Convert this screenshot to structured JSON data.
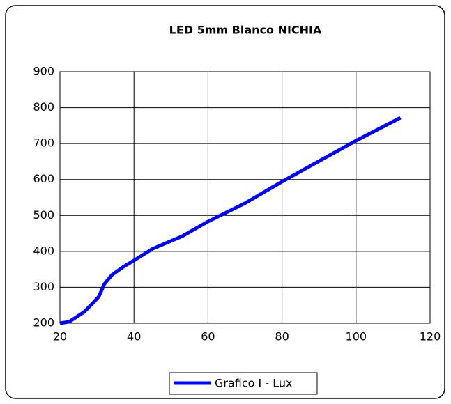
{
  "chart_data": {
    "type": "line",
    "title": "LED 5mm Blanco NICHIA",
    "x": [
      20,
      22.5,
      26.5,
      29,
      30.5,
      32,
      34,
      37,
      40.5,
      45,
      53,
      60,
      70,
      80,
      90.5,
      100,
      112
    ],
    "series": [
      {
        "name": "Grafico I - Lux",
        "color": "#0000ff",
        "values": [
          200,
          204,
          231,
          257,
          274,
          309,
          334,
          356,
          378,
          407,
          442,
          483,
          534,
          594,
          654,
          708,
          772
        ]
      }
    ],
    "xlim": [
      20,
      120
    ],
    "xticks": [
      20,
      40,
      60,
      80,
      100,
      120
    ],
    "ylim": [
      200,
      900
    ],
    "yticks": [
      200,
      300,
      400,
      500,
      600,
      700,
      800,
      900
    ],
    "grid": true,
    "legend": "bottom"
  }
}
